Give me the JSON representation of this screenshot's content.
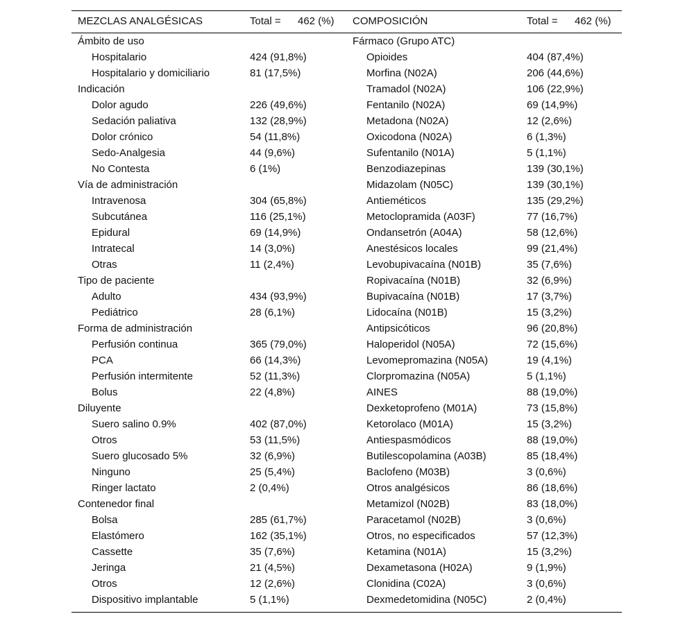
{
  "header": {
    "left_title": "MEZCLAS ANALGÉSICAS",
    "left_total": "Total =",
    "left_n": "462 (%)",
    "right_title": "COMPOSICIÓN",
    "right_total": "Total =",
    "right_n": "462 (%)"
  },
  "left_groups": [
    {
      "name": "Ámbito de uso",
      "items": [
        {
          "label": "Hospitalario",
          "value": "424 (91,8%)"
        },
        {
          "label": "Hospitalario y domiciliario",
          "value": "81 (17,5%)"
        }
      ]
    },
    {
      "name": "Indicación",
      "items": [
        {
          "label": "Dolor agudo",
          "value": "226 (49,6%)"
        },
        {
          "label": "Sedación paliativa",
          "value": "132 (28,9%)"
        },
        {
          "label": "Dolor crónico",
          "value": "54 (11,8%)"
        },
        {
          "label": "Sedo-Analgesia",
          "value": "44 (9,6%)"
        },
        {
          "label": "No Contesta",
          "value": "6 (1%)"
        }
      ]
    },
    {
      "name": "Vía de administración",
      "items": [
        {
          "label": "Intravenosa",
          "value": "304 (65,8%)"
        },
        {
          "label": "Subcutánea",
          "value": "116 (25,1%)"
        },
        {
          "label": "Epidural",
          "value": "69 (14,9%)"
        },
        {
          "label": "Intratecal",
          "value": "14 (3,0%)"
        },
        {
          "label": "Otras",
          "value": "11 (2,4%)"
        }
      ]
    },
    {
      "name": "Tipo de paciente",
      "items": [
        {
          "label": "Adulto",
          "value": "434 (93,9%)"
        },
        {
          "label": "Pediátrico",
          "value": "28 (6,1%)"
        }
      ]
    },
    {
      "name": "Forma de administración",
      "items": [
        {
          "label": "Perfusión continua",
          "value": "365 (79,0%)"
        },
        {
          "label": "PCA",
          "value": "66 (14,3%)"
        },
        {
          "label": "Perfusión intermitente",
          "value": "52 (11,3%)"
        },
        {
          "label": "Bolus",
          "value": "22 (4,8%)"
        }
      ]
    },
    {
      "name": "Diluyente",
      "items": [
        {
          "label": "Suero salino 0.9%",
          "value": "402 (87,0%)"
        },
        {
          "label": "Otros",
          "value": "53 (11,5%)"
        },
        {
          "label": "Suero glucosado 5%",
          "value": "32 (6,9%)"
        },
        {
          "label": "Ninguno",
          "value": "25 (5,4%)"
        },
        {
          "label": "Ringer lactato",
          "value": "2 (0,4%)"
        }
      ]
    },
    {
      "name": "Contenedor final",
      "items": [
        {
          "label": "Bolsa",
          "value": "285 (61,7%)"
        },
        {
          "label": "Elastómero",
          "value": "162 (35,1%)"
        },
        {
          "label": "Cassette",
          "value": "35 (7,6%)"
        },
        {
          "label": "Jeringa",
          "value": "21 (4,5%)"
        },
        {
          "label": "Otros",
          "value": "12 (2,6%)"
        },
        {
          "label": "Dispositivo implantable",
          "value": "5 (1,1%)"
        }
      ]
    }
  ],
  "right_group": {
    "name": "Fármaco (Grupo ATC)",
    "items": [
      {
        "label": "Opioides",
        "value": "404 (87,4%)"
      },
      {
        "label": "Morfina (N02A)",
        "value": "206 (44,6%)"
      },
      {
        "label": "Tramadol (N02A)",
        "value": "106 (22,9%)"
      },
      {
        "label": "Fentanilo (N02A)",
        "value": "69 (14,9%)"
      },
      {
        "label": "Metadona (N02A)",
        "value": "12 (2,6%)"
      },
      {
        "label": "Oxicodona (N02A)",
        "value": "6 (1,3%)"
      },
      {
        "label": "Sufentanilo (N01A)",
        "value": "5 (1,1%)"
      },
      {
        "label": "Benzodiazepinas",
        "value": "139 (30,1%)"
      },
      {
        "label": "Midazolam (N05C)",
        "value": "139 (30,1%)"
      },
      {
        "label": "Antieméticos",
        "value": "135 (29,2%)"
      },
      {
        "label": "Metoclopramida (A03F)",
        "value": "77 (16,7%)"
      },
      {
        "label": "Ondansetrón (A04A)",
        "value": "58 (12,6%)"
      },
      {
        "label": "Anestésicos locales",
        "value": "99 (21,4%)"
      },
      {
        "label": "Levobupivacaína (N01B)",
        "value": "35 (7,6%)"
      },
      {
        "label": "Ropivacaína (N01B)",
        "value": "32 (6,9%)"
      },
      {
        "label": "Bupivacaína (N01B)",
        "value": "17 (3,7%)"
      },
      {
        "label": "Lidocaína (N01B)",
        "value": "15 (3,2%)"
      },
      {
        "label": "Antipsicóticos",
        "value": "96 (20,8%)"
      },
      {
        "label": "Haloperidol (N05A)",
        "value": "72 (15,6%)"
      },
      {
        "label": "Levomepromazina (N05A)",
        "value": "19 (4,1%)"
      },
      {
        "label": "Clorpromazina (N05A)",
        "value": "5 (1,1%)"
      },
      {
        "label": "AINES",
        "value": "88 (19,0%)"
      },
      {
        "label": "Dexketoprofeno (M01A)",
        "value": "73 (15,8%)"
      },
      {
        "label": "Ketorolaco (M01A)",
        "value": "15 (3,2%)"
      },
      {
        "label": "Antiespasmódicos",
        "value": "88 (19,0%)"
      },
      {
        "label": "Butilescopolamina (A03B)",
        "value": "85 (18,4%)"
      },
      {
        "label": "Baclofeno (M03B)",
        "value": "3 (0,6%)"
      },
      {
        "label": "Otros analgésicos",
        "value": "86 (18,6%)"
      },
      {
        "label": "Metamizol (N02B)",
        "value": "83 (18,0%)"
      },
      {
        "label": "Paracetamol (N02B)",
        "value": "3 (0,6%)"
      },
      {
        "label": "Otros, no especificados",
        "value": "57 (12,3%)"
      },
      {
        "label": "Ketamina (N01A)",
        "value": "15 (3,2%)"
      },
      {
        "label": "Dexametasona (H02A)",
        "value": "9 (1,9%)"
      },
      {
        "label": "Clonidina (C02A)",
        "value": "3 (0,6%)"
      },
      {
        "label": "Dexmedetomidina (N05C)",
        "value": "2 (0,4%)"
      }
    ]
  }
}
